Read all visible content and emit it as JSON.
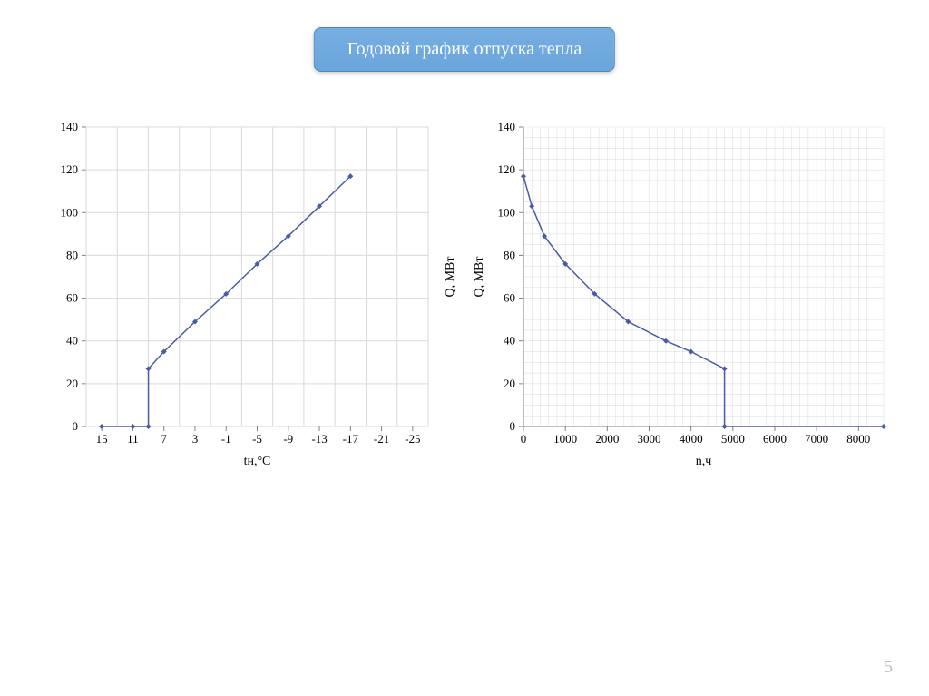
{
  "title": "Годовой график отпуска тепла",
  "page_number": "5",
  "chart_left": {
    "type": "line",
    "xlabel": "tн,°C",
    "ylabel": "Q, МВт",
    "x_categories": [
      "15",
      "11",
      "7",
      "3",
      "-1",
      "-5",
      "-9",
      "-13",
      "-17",
      "-21",
      "-25"
    ],
    "ylim": [
      0,
      140
    ],
    "ytick_step": 20,
    "y_ticks": [
      0,
      20,
      40,
      60,
      80,
      100,
      120,
      140
    ],
    "line_color": "#4a5ba6",
    "marker_color": "#4a5ba6",
    "marker_size": 3,
    "grid_color": "#d9d9d9",
    "axis_color": "#808080",
    "background_color": "#ffffff",
    "label_fontsize": 14,
    "tick_fontsize": 13,
    "data": [
      {
        "x_idx": 0,
        "y": 0
      },
      {
        "x_idx": 1,
        "y": 0
      },
      {
        "x_idx": 1.5,
        "y": 0
      },
      {
        "x_idx": 1.5,
        "y": 27
      },
      {
        "x_idx": 2,
        "y": 35
      },
      {
        "x_idx": 3,
        "y": 49
      },
      {
        "x_idx": 4,
        "y": 62
      },
      {
        "x_idx": 5,
        "y": 76
      },
      {
        "x_idx": 6,
        "y": 89
      },
      {
        "x_idx": 7,
        "y": 103
      },
      {
        "x_idx": 8,
        "y": 117
      }
    ]
  },
  "chart_right": {
    "type": "line",
    "xlabel": "n,ч",
    "ylabel": "Q, МВт",
    "xlim": [
      0,
      8600
    ],
    "xtick_step": 1000,
    "x_ticks": [
      0,
      1000,
      2000,
      3000,
      4000,
      5000,
      6000,
      7000,
      8000
    ],
    "minor_x_step": 200,
    "minor_y_step": 5,
    "ylim": [
      0,
      140
    ],
    "ytick_step": 20,
    "y_ticks": [
      0,
      20,
      40,
      60,
      80,
      100,
      120,
      140
    ],
    "line_color": "#4a5ba6",
    "marker_color": "#4a5ba6",
    "marker_size": 3,
    "grid_color": "#d9d9d9",
    "axis_color": "#808080",
    "background_color": "#ffffff",
    "label_fontsize": 14,
    "tick_fontsize": 13,
    "data": [
      {
        "x": 0,
        "y": 117
      },
      {
        "x": 200,
        "y": 103
      },
      {
        "x": 500,
        "y": 89
      },
      {
        "x": 1000,
        "y": 76
      },
      {
        "x": 1700,
        "y": 62
      },
      {
        "x": 2500,
        "y": 49
      },
      {
        "x": 3400,
        "y": 40
      },
      {
        "x": 4000,
        "y": 35
      },
      {
        "x": 4800,
        "y": 27
      },
      {
        "x": 4800,
        "y": 0
      },
      {
        "x": 8600,
        "y": 0
      }
    ]
  }
}
